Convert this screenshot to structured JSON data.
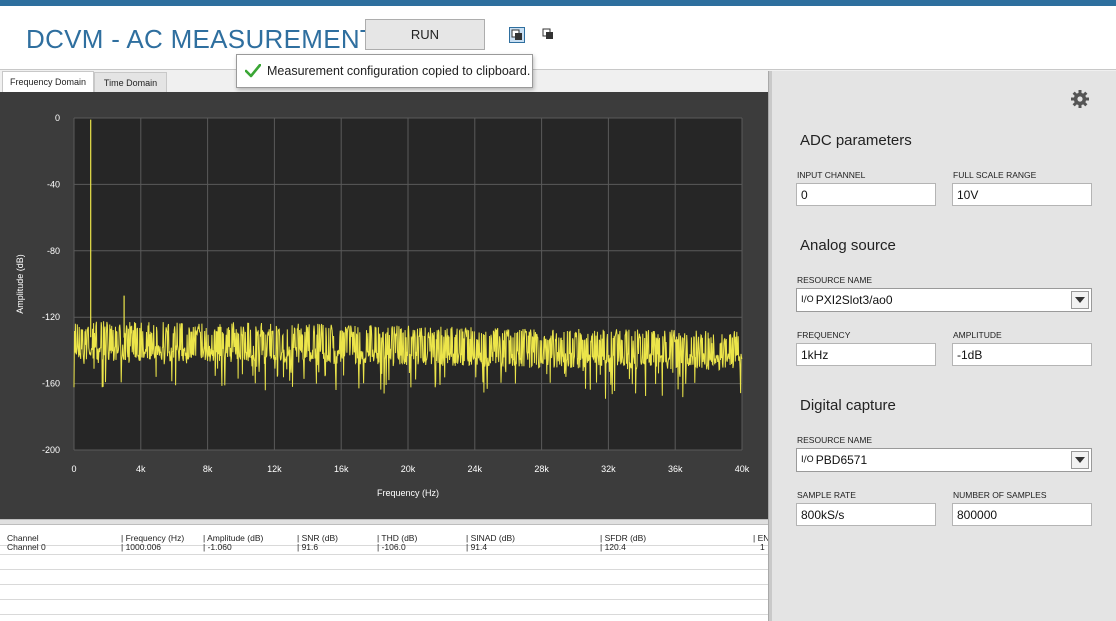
{
  "app": {
    "title": "DCVM - AC MEASUREMENT"
  },
  "toolbar": {
    "run_label": "RUN",
    "copy_icon": "copy-config-icon",
    "paste_icon": "paste-config-icon"
  },
  "toast": {
    "message": "Measurement configuration copied to clipboard.",
    "icon": "checkmark-icon",
    "color": "#3aa635"
  },
  "tabs": [
    {
      "label": "Frequency Domain",
      "active": true
    },
    {
      "label": "Time Domain",
      "active": false
    }
  ],
  "chart_data": {
    "type": "line",
    "xlabel": "Frequency (Hz)",
    "ylabel": "Amplitude (dB)",
    "xlim": [
      0,
      40000
    ],
    "ylim": [
      -200,
      0
    ],
    "x_ticks": [
      "0",
      "4k",
      "8k",
      "12k",
      "16k",
      "20k",
      "24k",
      "28k",
      "32k",
      "36k",
      "40k"
    ],
    "y_ticks": [
      "0",
      "-40",
      "-80",
      "-120",
      "-160",
      "-200"
    ],
    "grid": true,
    "background": "#262626",
    "series": [
      {
        "color": "#ece54a",
        "noise_floor": [
          {
            "x": 0,
            "y": -132
          },
          {
            "x": 10000,
            "y": -133
          },
          {
            "x": 20000,
            "y": -135
          },
          {
            "x": 30000,
            "y": -137
          },
          {
            "x": 40000,
            "y": -138
          }
        ],
        "peaks": [
          {
            "x": 1000,
            "y": -1
          },
          {
            "x": 3000,
            "y": -107
          }
        ]
      }
    ]
  },
  "results_table": {
    "headers": [
      "Channel",
      "Frequency (Hz)",
      "Amplitude (dB)",
      "SNR (dB)",
      "THD (dB)",
      "SINAD (dB)",
      "SFDR (dB)",
      "EN"
    ],
    "rows": [
      [
        "Channel 0",
        "1000.006",
        "-1.060",
        "91.6",
        "-106.0",
        "91.4",
        "120.4",
        "1"
      ]
    ]
  },
  "settings": {
    "gear_icon": "gear-icon",
    "adc": {
      "title": "ADC parameters",
      "input_channel_label": "INPUT CHANNEL",
      "input_channel_value": "0",
      "full_scale_label": "FULL SCALE RANGE",
      "full_scale_value": "10V"
    },
    "analog": {
      "title": "Analog source",
      "resource_label": "RESOURCE NAME",
      "resource_value": "PXI2Slot3/ao0",
      "frequency_label": "FREQUENCY",
      "frequency_value": "1kHz",
      "amplitude_label": "AMPLITUDE",
      "amplitude_value": "-1dB"
    },
    "digital": {
      "title": "Digital capture",
      "resource_label": "RESOURCE NAME",
      "resource_value": "PBD6571",
      "sample_rate_label": "SAMPLE RATE",
      "sample_rate_value": "800kS/s",
      "num_samples_label": "NUMBER OF SAMPLES",
      "num_samples_value": "800000"
    }
  }
}
